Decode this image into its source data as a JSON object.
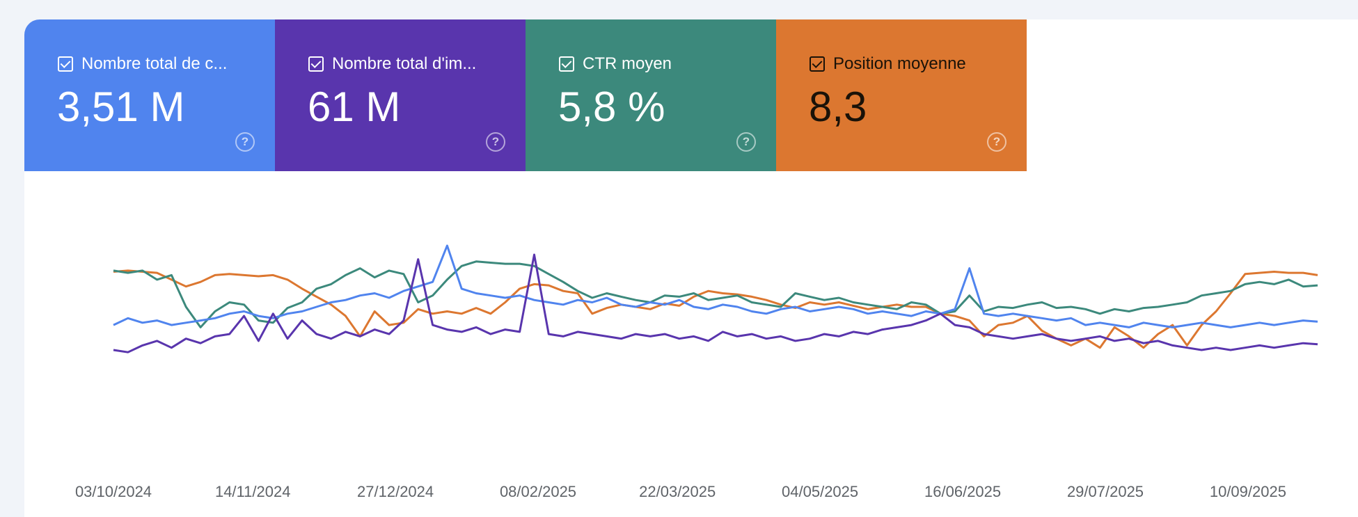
{
  "metrics": [
    {
      "id": "clicks",
      "label": "Nombre total de c...",
      "value": "3,51 M",
      "color": "#5084ee",
      "checked": true
    },
    {
      "id": "impressions",
      "label": "Nombre total d'im...",
      "value": "61 M",
      "color": "#5935ad",
      "checked": true
    },
    {
      "id": "ctr",
      "label": "CTR moyen",
      "value": "5,8 %",
      "color": "#3c897c",
      "checked": true
    },
    {
      "id": "position",
      "label": "Position moyenne",
      "value": "8,3",
      "color": "#dc7730",
      "checked": true
    }
  ],
  "help_icon": "help-circle-icon",
  "chart_data": {
    "type": "line",
    "x_ticks": [
      "03/10/2024",
      "14/11/2024",
      "27/12/2024",
      "08/02/2025",
      "22/03/2025",
      "04/05/2025",
      "16/06/2025",
      "29/07/2025",
      "10/09/2025"
    ],
    "x_range": [
      "03/10/2024",
      "01/10/2025"
    ],
    "y_axis_shown": false,
    "grid": false,
    "series": [
      {
        "name": "Position moyenne",
        "color": "#dc7730",
        "values": [
          0.77,
          0.78,
          0.77,
          0.76,
          0.7,
          0.64,
          0.68,
          0.74,
          0.75,
          0.74,
          0.73,
          0.74,
          0.7,
          0.62,
          0.55,
          0.48,
          0.38,
          0.2,
          0.42,
          0.3,
          0.32,
          0.44,
          0.4,
          0.42,
          0.4,
          0.45,
          0.4,
          0.5,
          0.62,
          0.66,
          0.65,
          0.6,
          0.58,
          0.4,
          0.45,
          0.48,
          0.46,
          0.44,
          0.49,
          0.47,
          0.55,
          0.6,
          0.58,
          0.57,
          0.55,
          0.52,
          0.48,
          0.45,
          0.5,
          0.48,
          0.5,
          0.47,
          0.44,
          0.46,
          0.48,
          0.46,
          0.46,
          0.4,
          0.38,
          0.34,
          0.2,
          0.3,
          0.32,
          0.38,
          0.25,
          0.18,
          0.12,
          0.18,
          0.1,
          0.28,
          0.2,
          0.1,
          0.22,
          0.3,
          0.12,
          0.3,
          0.42,
          0.58,
          0.75,
          0.76,
          0.77,
          0.76,
          0.76,
          0.74
        ]
      },
      {
        "name": "CTR moyen",
        "color": "#3c897c",
        "values": [
          0.78,
          0.76,
          0.78,
          0.7,
          0.74,
          0.46,
          0.28,
          0.42,
          0.5,
          0.48,
          0.34,
          0.32,
          0.45,
          0.5,
          0.62,
          0.66,
          0.74,
          0.8,
          0.72,
          0.78,
          0.75,
          0.5,
          0.56,
          0.7,
          0.82,
          0.86,
          0.85,
          0.84,
          0.84,
          0.82,
          0.75,
          0.68,
          0.6,
          0.54,
          0.58,
          0.55,
          0.52,
          0.5,
          0.56,
          0.55,
          0.58,
          0.52,
          0.54,
          0.56,
          0.5,
          0.48,
          0.46,
          0.58,
          0.55,
          0.52,
          0.54,
          0.5,
          0.48,
          0.46,
          0.44,
          0.5,
          0.48,
          0.4,
          0.42,
          0.56,
          0.42,
          0.46,
          0.45,
          0.48,
          0.5,
          0.45,
          0.46,
          0.44,
          0.4,
          0.44,
          0.42,
          0.45,
          0.46,
          0.48,
          0.5,
          0.56,
          0.58,
          0.6,
          0.66,
          0.68,
          0.66,
          0.7,
          0.64,
          0.65
        ]
      },
      {
        "name": "Nombre total de clics",
        "color": "#5084ee",
        "values": [
          0.3,
          0.36,
          0.32,
          0.34,
          0.3,
          0.32,
          0.34,
          0.36,
          0.4,
          0.42,
          0.38,
          0.36,
          0.4,
          0.42,
          0.46,
          0.5,
          0.52,
          0.56,
          0.58,
          0.54,
          0.6,
          0.64,
          0.68,
          1.0,
          0.62,
          0.58,
          0.56,
          0.54,
          0.56,
          0.52,
          0.5,
          0.48,
          0.52,
          0.5,
          0.54,
          0.48,
          0.46,
          0.5,
          0.48,
          0.52,
          0.46,
          0.44,
          0.48,
          0.46,
          0.42,
          0.4,
          0.44,
          0.46,
          0.42,
          0.44,
          0.46,
          0.44,
          0.4,
          0.42,
          0.4,
          0.38,
          0.42,
          0.4,
          0.44,
          0.8,
          0.4,
          0.38,
          0.4,
          0.38,
          0.36,
          0.34,
          0.36,
          0.3,
          0.32,
          0.3,
          0.28,
          0.32,
          0.3,
          0.28,
          0.3,
          0.32,
          0.3,
          0.28,
          0.3,
          0.32,
          0.3,
          0.32,
          0.34,
          0.33
        ]
      },
      {
        "name": "Nombre total d'impressions",
        "color": "#5935ad",
        "values": [
          0.08,
          0.06,
          0.12,
          0.16,
          0.1,
          0.18,
          0.14,
          0.2,
          0.22,
          0.38,
          0.16,
          0.4,
          0.18,
          0.34,
          0.22,
          0.18,
          0.24,
          0.2,
          0.26,
          0.22,
          0.34,
          0.88,
          0.3,
          0.26,
          0.24,
          0.28,
          0.22,
          0.26,
          0.24,
          0.92,
          0.22,
          0.2,
          0.24,
          0.22,
          0.2,
          0.18,
          0.22,
          0.2,
          0.22,
          0.18,
          0.2,
          0.16,
          0.24,
          0.2,
          0.22,
          0.18,
          0.2,
          0.16,
          0.18,
          0.22,
          0.2,
          0.24,
          0.22,
          0.26,
          0.28,
          0.3,
          0.34,
          0.4,
          0.3,
          0.28,
          0.22,
          0.2,
          0.18,
          0.2,
          0.22,
          0.18,
          0.16,
          0.18,
          0.2,
          0.16,
          0.18,
          0.14,
          0.16,
          0.12,
          0.1,
          0.08,
          0.1,
          0.08,
          0.1,
          0.12,
          0.1,
          0.12,
          0.14,
          0.13
        ]
      }
    ]
  }
}
